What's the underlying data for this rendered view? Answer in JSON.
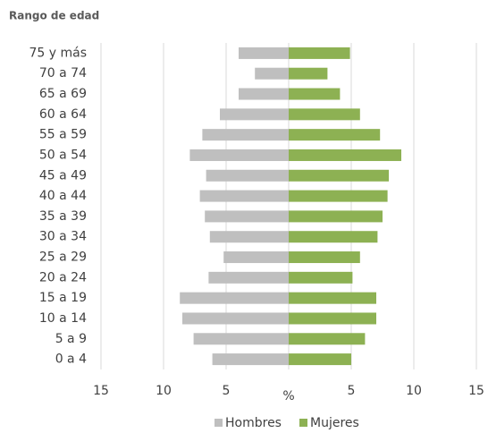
{
  "chart_data": {
    "type": "pyramid",
    "title": "Rango de edad",
    "xlabel": "%",
    "categories": [
      "75 y más",
      "70 a 74",
      "65 a 69",
      "60 a 64",
      "55 a 59",
      "50 a 54",
      "45 a 49",
      "40 a 44",
      "35 a 39",
      "30 a 34",
      "25 a 29",
      "20 a 24",
      "15 a 19",
      "10 a 14",
      "5 a 9",
      "0 a 4"
    ],
    "series": [
      {
        "name": "Hombres",
        "color": "#bfbfbf",
        "values": [
          -4.0,
          -2.7,
          -4.0,
          -5.5,
          -6.9,
          -7.9,
          -6.6,
          -7.1,
          -6.7,
          -6.3,
          -5.2,
          -6.4,
          -8.7,
          -8.5,
          -7.6,
          -6.1
        ]
      },
      {
        "name": "Mujeres",
        "color": "#8db153",
        "values": [
          4.9,
          3.1,
          4.1,
          5.7,
          7.3,
          9.0,
          8.0,
          7.9,
          7.5,
          7.1,
          5.7,
          5.1,
          7.0,
          7.0,
          6.1,
          5.0
        ]
      }
    ],
    "xlim": [
      -15,
      15
    ],
    "xticks": [
      {
        "value": -15,
        "label": "15"
      },
      {
        "value": -10,
        "label": "10"
      },
      {
        "value": -5,
        "label": "5"
      },
      0,
      5,
      10,
      15
    ],
    "grid": true
  }
}
